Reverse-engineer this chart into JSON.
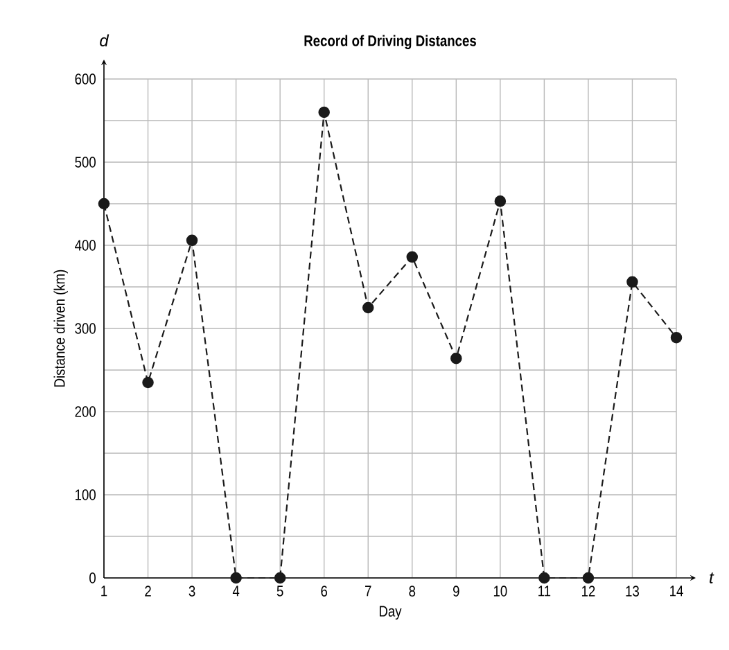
{
  "chart_data": {
    "type": "line",
    "title": "Record of Driving Distances",
    "xlabel": "Day",
    "ylabel": "Distance driven (km)",
    "annotations": [
      "d",
      "t"
    ],
    "x": [
      1,
      2,
      3,
      4,
      5,
      6,
      7,
      8,
      9,
      10,
      11,
      12,
      13,
      14
    ],
    "values": [
      450,
      235,
      406,
      0,
      0,
      560,
      325,
      386,
      264,
      453,
      0,
      0,
      356,
      289
    ],
    "color": "#1a1a1a",
    "xlim": [
      1,
      14
    ],
    "xticks": [
      1,
      2,
      3,
      4,
      5,
      6,
      7,
      8,
      9,
      10,
      11,
      12,
      13,
      14
    ],
    "ylim": [
      0,
      600
    ],
    "yticks": [
      0,
      {
        "value": 50,
        "label": null
      },
      100,
      {
        "value": 150,
        "label": null
      },
      200,
      {
        "value": 250,
        "label": null
      },
      300,
      {
        "value": 350,
        "label": null
      },
      400,
      {
        "value": 450,
        "label": null
      },
      500,
      {
        "value": 550,
        "label": null
      },
      600
    ],
    "grid": true,
    "marker": "circle",
    "line_style": "dashed"
  }
}
